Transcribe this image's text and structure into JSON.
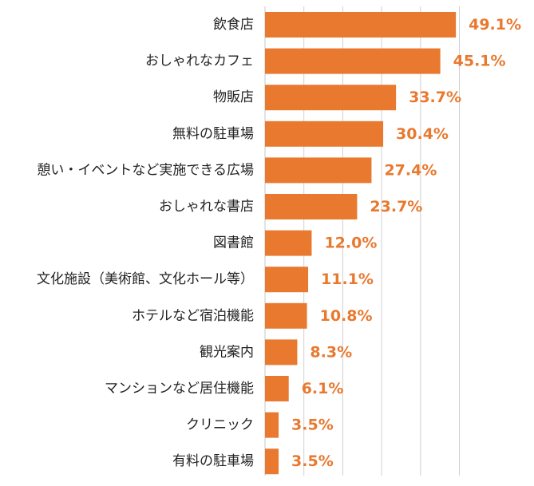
{
  "chart_data": {
    "type": "bar",
    "orientation": "horizontal",
    "categories": [
      "飲食店",
      "おしゃれなカフェ",
      "物販店",
      "無料の駐車場",
      "憩い・イベントなど実施できる広場",
      "おしゃれな書店",
      "図書館",
      "文化施設（美術館、文化ホール等）",
      "ホテルなど宿泊機能",
      "観光案内",
      "マンションなど居住機能",
      "クリニック",
      "有料の駐車場"
    ],
    "values": [
      49.1,
      45.1,
      33.7,
      30.4,
      27.4,
      23.7,
      12.0,
      11.1,
      10.8,
      8.3,
      6.1,
      3.5,
      3.5
    ],
    "value_labels": [
      "49.1%",
      "45.1%",
      "33.7%",
      "30.4%",
      "27.4%",
      "23.7%",
      "12.0%",
      "11.1%",
      "10.8%",
      "8.3%",
      "6.1%",
      "3.5%",
      "3.5%"
    ],
    "xlim": [
      0,
      60
    ],
    "gridlines": [
      0,
      10,
      20,
      30,
      40,
      50
    ],
    "grid": true,
    "legend": "none",
    "bar_color": "#E8792F",
    "label_color": "#E8792F",
    "grid_color": "#D0D0D0"
  }
}
